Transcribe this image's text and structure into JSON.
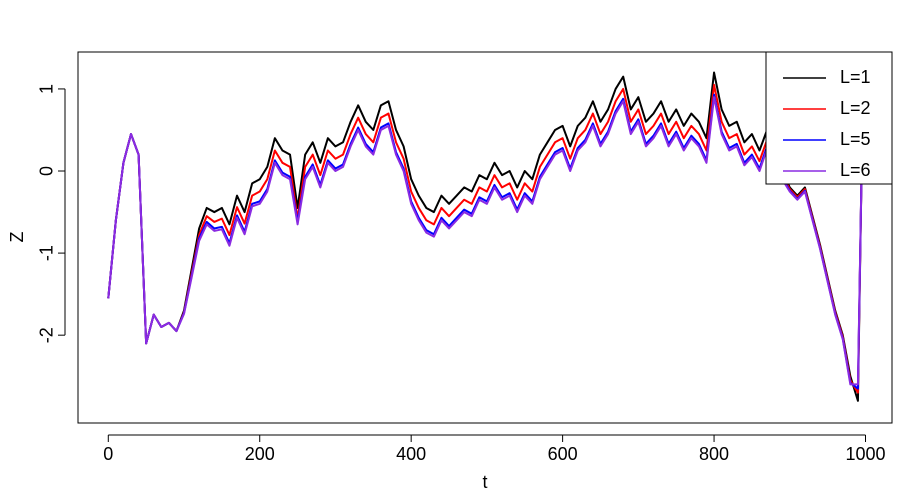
{
  "chart_data": {
    "type": "line",
    "x_label": "t",
    "y_label": "Z",
    "xlim": [
      -40,
      1035
    ],
    "ylim": [
      -3.07,
      1.45
    ],
    "xticks": [
      0,
      200,
      400,
      600,
      800,
      1000
    ],
    "yticks": [
      -2,
      -1,
      0,
      1
    ],
    "legend": "top-right",
    "x": [
      0,
      10,
      20,
      30,
      40,
      50,
      60,
      70,
      80,
      90,
      100,
      110,
      120,
      130,
      140,
      150,
      160,
      170,
      180,
      190,
      200,
      210,
      220,
      230,
      240,
      250,
      260,
      270,
      280,
      290,
      300,
      310,
      320,
      330,
      340,
      350,
      360,
      370,
      380,
      390,
      400,
      410,
      420,
      430,
      440,
      450,
      460,
      470,
      480,
      490,
      500,
      510,
      520,
      530,
      540,
      550,
      560,
      570,
      580,
      590,
      600,
      610,
      620,
      630,
      640,
      650,
      660,
      670,
      680,
      690,
      700,
      710,
      720,
      730,
      740,
      750,
      760,
      770,
      780,
      790,
      800,
      810,
      820,
      830,
      840,
      850,
      860,
      870,
      880,
      890,
      900,
      910,
      920,
      930,
      940,
      950,
      960,
      970,
      980,
      990,
      995
    ],
    "series": [
      {
        "name": "L=1",
        "color": "#000000",
        "values": [
          -1.55,
          -0.6,
          0.1,
          0.45,
          0.2,
          -2.1,
          -1.75,
          -1.9,
          -1.85,
          -1.95,
          -1.7,
          -1.2,
          -0.7,
          -0.45,
          -0.5,
          -0.45,
          -0.65,
          -0.3,
          -0.5,
          -0.15,
          -0.1,
          0.05,
          0.4,
          0.25,
          0.2,
          -0.45,
          0.2,
          0.35,
          0.1,
          0.4,
          0.3,
          0.35,
          0.6,
          0.8,
          0.6,
          0.5,
          0.8,
          0.85,
          0.5,
          0.3,
          -0.1,
          -0.3,
          -0.45,
          -0.5,
          -0.3,
          -0.4,
          -0.3,
          -0.2,
          -0.25,
          -0.05,
          -0.1,
          0.1,
          -0.05,
          0.0,
          -0.2,
          0.0,
          -0.1,
          0.2,
          0.35,
          0.5,
          0.55,
          0.3,
          0.55,
          0.65,
          0.85,
          0.6,
          0.75,
          1.0,
          1.15,
          0.75,
          0.9,
          0.6,
          0.7,
          0.85,
          0.6,
          0.75,
          0.55,
          0.7,
          0.6,
          0.4,
          1.2,
          0.75,
          0.55,
          0.6,
          0.35,
          0.45,
          0.25,
          0.5,
          0.25,
          0.0,
          -0.2,
          -0.3,
          -0.2,
          -0.55,
          -0.9,
          -1.3,
          -1.7,
          -2.0,
          -2.5,
          -2.8,
          0.1
        ]
      },
      {
        "name": "L=2",
        "color": "#ff0000",
        "values": [
          -1.55,
          -0.6,
          0.1,
          0.45,
          0.2,
          -2.1,
          -1.75,
          -1.9,
          -1.85,
          -1.95,
          -1.72,
          -1.25,
          -0.78,
          -0.55,
          -0.62,
          -0.58,
          -0.78,
          -0.44,
          -0.64,
          -0.3,
          -0.25,
          -0.1,
          0.25,
          0.1,
          0.05,
          -0.58,
          0.05,
          0.2,
          -0.05,
          0.25,
          0.15,
          0.2,
          0.45,
          0.65,
          0.45,
          0.35,
          0.65,
          0.7,
          0.35,
          0.15,
          -0.25,
          -0.45,
          -0.6,
          -0.65,
          -0.45,
          -0.55,
          -0.45,
          -0.35,
          -0.4,
          -0.2,
          -0.25,
          -0.05,
          -0.2,
          -0.15,
          -0.35,
          -0.15,
          -0.25,
          0.05,
          0.2,
          0.35,
          0.4,
          0.15,
          0.4,
          0.5,
          0.7,
          0.45,
          0.6,
          0.85,
          1.0,
          0.6,
          0.75,
          0.45,
          0.55,
          0.7,
          0.45,
          0.6,
          0.4,
          0.55,
          0.45,
          0.25,
          1.05,
          0.6,
          0.4,
          0.45,
          0.2,
          0.3,
          0.12,
          0.38,
          0.15,
          -0.05,
          -0.22,
          -0.32,
          -0.22,
          -0.57,
          -0.92,
          -1.32,
          -1.72,
          -2.02,
          -2.55,
          -2.7,
          0.1
        ]
      },
      {
        "name": "L=5",
        "color": "#0000ff",
        "values": [
          -1.55,
          -0.6,
          0.1,
          0.45,
          0.2,
          -2.1,
          -1.75,
          -1.9,
          -1.85,
          -1.95,
          -1.73,
          -1.28,
          -0.82,
          -0.62,
          -0.7,
          -0.68,
          -0.88,
          -0.54,
          -0.74,
          -0.4,
          -0.37,
          -0.22,
          0.13,
          -0.02,
          -0.07,
          -0.62,
          -0.07,
          0.08,
          -0.17,
          0.13,
          0.03,
          0.08,
          0.33,
          0.53,
          0.33,
          0.23,
          0.53,
          0.58,
          0.23,
          0.03,
          -0.37,
          -0.57,
          -0.72,
          -0.77,
          -0.57,
          -0.67,
          -0.57,
          -0.47,
          -0.52,
          -0.32,
          -0.37,
          -0.17,
          -0.32,
          -0.27,
          -0.47,
          -0.27,
          -0.37,
          -0.07,
          0.08,
          0.23,
          0.28,
          0.03,
          0.28,
          0.38,
          0.58,
          0.33,
          0.48,
          0.73,
          0.88,
          0.48,
          0.63,
          0.33,
          0.43,
          0.58,
          0.33,
          0.48,
          0.28,
          0.43,
          0.33,
          0.13,
          0.93,
          0.48,
          0.28,
          0.33,
          0.1,
          0.2,
          0.03,
          0.3,
          0.08,
          -0.08,
          -0.24,
          -0.34,
          -0.24,
          -0.59,
          -0.94,
          -1.34,
          -1.74,
          -2.04,
          -2.58,
          -2.65,
          0.1
        ]
      },
      {
        "name": "L=6",
        "color": "#8a2be2",
        "values": [
          -1.55,
          -0.6,
          0.1,
          0.45,
          0.2,
          -2.1,
          -1.75,
          -1.9,
          -1.85,
          -1.95,
          -1.74,
          -1.3,
          -0.85,
          -0.65,
          -0.73,
          -0.71,
          -0.91,
          -0.57,
          -0.77,
          -0.43,
          -0.4,
          -0.25,
          0.1,
          -0.05,
          -0.1,
          -0.65,
          -0.1,
          0.05,
          -0.2,
          0.1,
          0.0,
          0.05,
          0.3,
          0.5,
          0.3,
          0.2,
          0.5,
          0.55,
          0.2,
          0.0,
          -0.4,
          -0.6,
          -0.75,
          -0.8,
          -0.6,
          -0.7,
          -0.6,
          -0.5,
          -0.55,
          -0.35,
          -0.4,
          -0.2,
          -0.35,
          -0.3,
          -0.5,
          -0.3,
          -0.4,
          -0.1,
          0.05,
          0.2,
          0.25,
          0.0,
          0.25,
          0.35,
          0.55,
          0.3,
          0.45,
          0.7,
          0.85,
          0.45,
          0.6,
          0.3,
          0.4,
          0.55,
          0.3,
          0.45,
          0.25,
          0.4,
          0.3,
          0.1,
          0.9,
          0.45,
          0.25,
          0.3,
          0.07,
          0.17,
          0.0,
          0.27,
          0.05,
          -0.1,
          -0.25,
          -0.35,
          -0.25,
          -0.6,
          -0.95,
          -1.35,
          -1.75,
          -2.05,
          -2.6,
          -2.6,
          0.1
        ]
      }
    ]
  }
}
